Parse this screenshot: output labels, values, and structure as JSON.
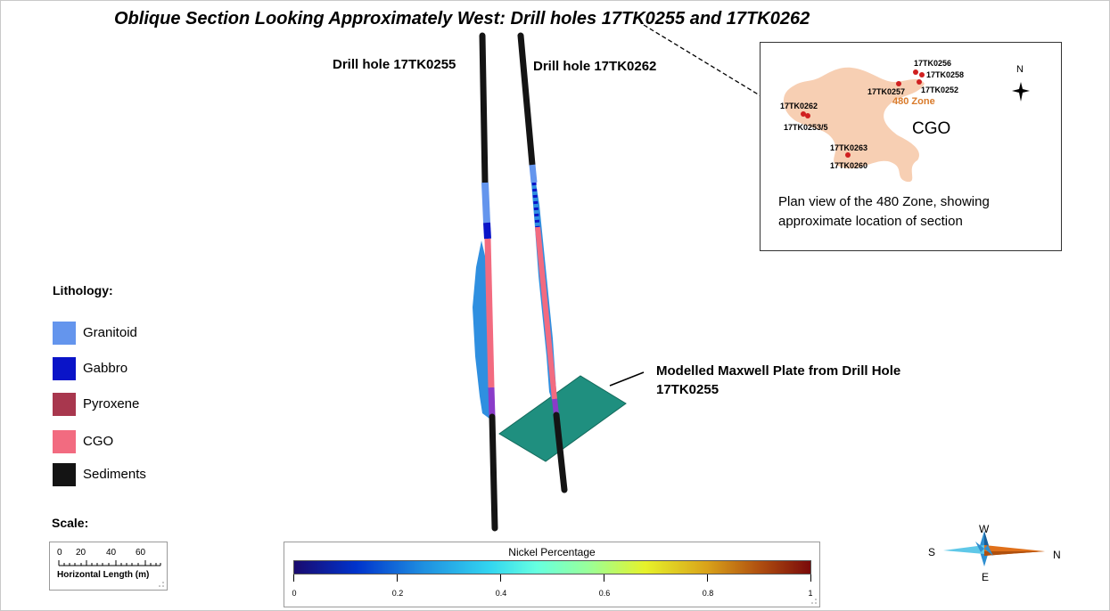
{
  "title": "Oblique Section Looking Approximately West: Drill holes 17TK0255 and 17TK0262",
  "drill_labels": {
    "left": "Drill hole 17TK0255",
    "right": "Drill hole 17TK0262"
  },
  "plate_label_line1": "Modelled Maxwell Plate from Drill Hole",
  "plate_label_line2": "17TK0255",
  "legend": {
    "title": "Lithology:",
    "items": [
      {
        "label": "Granitoid",
        "color": "#6495ed"
      },
      {
        "label": "Gabbro",
        "color": "#0a14c8"
      },
      {
        "label": "Pyroxene",
        "color": "#a8374e"
      },
      {
        "label": "CGO",
        "color": "#f26b80"
      },
      {
        "label": "Sediments",
        "color": "#141414"
      }
    ]
  },
  "scale": {
    "title": "Scale:",
    "ticks": [
      "0",
      "20",
      "40",
      "60"
    ],
    "caption": "Horizontal Length (m)"
  },
  "nickel": {
    "title": "Nickel Percentage",
    "ticks": [
      "0",
      "0.2",
      "0.4",
      "0.6",
      "0.8",
      "1"
    ],
    "range": [
      0,
      1
    ]
  },
  "inset": {
    "holes": [
      "17TK0256",
      "17TK0258",
      "17TK0257",
      "17TK0252",
      "17TK0262",
      "17TK0253/5",
      "17TK0263",
      "17TK0260"
    ],
    "zone": "480 Zone",
    "cgo": "CGO",
    "north": "N",
    "caption": "Plan view of the 480 Zone, showing approximate location of section"
  },
  "compass": {
    "w": "W",
    "s": "S",
    "n": "N",
    "e": "E"
  }
}
